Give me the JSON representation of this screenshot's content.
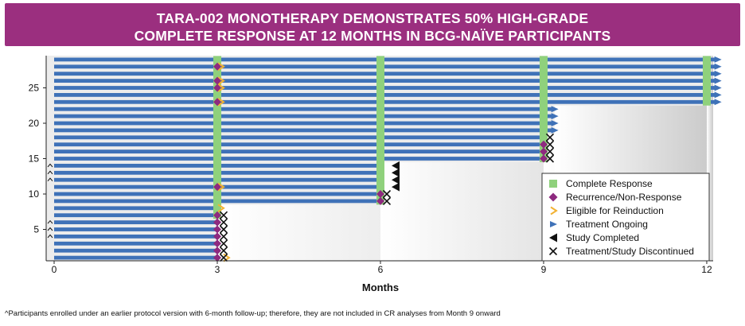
{
  "header": {
    "title_line1": "TARA-002 MONOTHERAPY DEMONSTRATES 50% HIGH-GRADE",
    "title_line2": "COMPLETE RESPONSE AT 12 MONTHS IN BCG-NAÏVE PARTICIPANTS"
  },
  "footnote": "^Participants enrolled under an earlier protocol version with 6-month follow-up; therefore, they are not included in CR analyses from Month 9 onward",
  "colors": {
    "banner": "#9b2f7f",
    "bar": "#3f72b8",
    "complete_response": "#8fd17c",
    "recurrence": "#8e2a7f",
    "reinduction": "#f2b233",
    "ongoing": "#3f72b8",
    "completed": "#111111",
    "discontinued": "#111111"
  },
  "chart_data": {
    "type": "swimmer",
    "title": "TARA-002 MONOTHERAPY DEMONSTRATES 50% HIGH-GRADE COMPLETE RESPONSE AT 12 MONTHS IN BCG-NAÏVE PARTICIPANTS",
    "xlabel": "Months",
    "ylabel": "",
    "xlim": [
      0,
      12.15
    ],
    "ylim": [
      0,
      30
    ],
    "xticks": [
      0,
      3,
      6,
      9,
      12
    ],
    "yticks": [
      5,
      10,
      15,
      20,
      25
    ],
    "grid": false,
    "legend_position": "bottom-right",
    "legend": [
      {
        "marker": "square",
        "label": "Complete Response"
      },
      {
        "marker": "diamond",
        "label": "Recurrence/Non-Response"
      },
      {
        "marker": "chevron",
        "label": "Eligible for Reinduction"
      },
      {
        "marker": "triangle-right",
        "label": "Treatment Ongoing"
      },
      {
        "marker": "triangle-left",
        "label": "Study Completed"
      },
      {
        "marker": "x",
        "label": "Treatment/Study Discontinued"
      }
    ],
    "participants": [
      {
        "id": 1,
        "end": 3,
        "cr": [],
        "recurrence": 3,
        "reinduction": 3.1,
        "event": "discontinued",
        "caret": false
      },
      {
        "id": 2,
        "end": 3,
        "cr": [],
        "recurrence": 3,
        "reinduction": null,
        "event": "discontinued",
        "caret": false
      },
      {
        "id": 3,
        "end": 3,
        "cr": [],
        "recurrence": 3,
        "reinduction": null,
        "event": "discontinued",
        "caret": false
      },
      {
        "id": 4,
        "end": 3,
        "cr": [],
        "recurrence": 3,
        "reinduction": null,
        "event": "discontinued",
        "caret": true
      },
      {
        "id": 5,
        "end": 3,
        "cr": [],
        "recurrence": 3,
        "reinduction": null,
        "event": "discontinued",
        "caret": true
      },
      {
        "id": 6,
        "end": 3,
        "cr": [],
        "recurrence": 3,
        "reinduction": null,
        "event": "discontinued",
        "caret": true
      },
      {
        "id": 7,
        "end": 3,
        "cr": [
          3
        ],
        "recurrence": 3,
        "reinduction": null,
        "event": "discontinued",
        "caret": false
      },
      {
        "id": 8,
        "end": 3,
        "cr": [
          3
        ],
        "recurrence": null,
        "reinduction": 3,
        "event": null,
        "caret": false
      },
      {
        "id": 9,
        "end": 6,
        "cr": [
          3,
          6
        ],
        "recurrence": 6,
        "reinduction": null,
        "event": "discontinued",
        "caret": false
      },
      {
        "id": 10,
        "end": 6,
        "cr": [
          3,
          6
        ],
        "recurrence": 6,
        "reinduction": null,
        "event": "discontinued",
        "caret": false
      },
      {
        "id": 11,
        "end": 6,
        "cr": [
          3,
          6
        ],
        "recurrence": 3,
        "reinduction": 3,
        "event": "completed",
        "caret": false
      },
      {
        "id": 12,
        "end": 6,
        "cr": [
          3,
          6
        ],
        "recurrence": null,
        "reinduction": null,
        "event": "completed",
        "caret": true
      },
      {
        "id": 13,
        "end": 6,
        "cr": [
          3,
          6
        ],
        "recurrence": null,
        "reinduction": null,
        "event": "completed",
        "caret": true
      },
      {
        "id": 14,
        "end": 6,
        "cr": [
          3,
          6
        ],
        "recurrence": null,
        "reinduction": null,
        "event": "completed",
        "caret": true
      },
      {
        "id": 15,
        "end": 9,
        "cr": [
          3,
          6,
          9
        ],
        "recurrence": 9,
        "reinduction": null,
        "event": "discontinued",
        "caret": false
      },
      {
        "id": 16,
        "end": 9,
        "cr": [
          3,
          6,
          9
        ],
        "recurrence": 9,
        "reinduction": null,
        "event": "discontinued",
        "caret": false
      },
      {
        "id": 17,
        "end": 9,
        "cr": [
          3,
          6,
          9
        ],
        "recurrence": 9,
        "reinduction": null,
        "event": "discontinued",
        "caret": false
      },
      {
        "id": 18,
        "end": 9,
        "cr": [
          3,
          6,
          9
        ],
        "recurrence": null,
        "reinduction": null,
        "event": "discontinued",
        "caret": false
      },
      {
        "id": 19,
        "end": 9.2,
        "cr": [
          3,
          6,
          9
        ],
        "recurrence": null,
        "reinduction": null,
        "event": "ongoing",
        "caret": false
      },
      {
        "id": 20,
        "end": 9.2,
        "cr": [
          3,
          6,
          9
        ],
        "recurrence": null,
        "reinduction": null,
        "event": "ongoing",
        "caret": false
      },
      {
        "id": 21,
        "end": 9.2,
        "cr": [
          3,
          6,
          9
        ],
        "recurrence": null,
        "reinduction": null,
        "event": "ongoing",
        "caret": false
      },
      {
        "id": 22,
        "end": 9.2,
        "cr": [
          3,
          6,
          9
        ],
        "recurrence": null,
        "reinduction": null,
        "event": "ongoing",
        "caret": false
      },
      {
        "id": 23,
        "end": 12.2,
        "cr": [
          3,
          6,
          9,
          12
        ],
        "recurrence": 3,
        "reinduction": 3,
        "event": "ongoing",
        "caret": false
      },
      {
        "id": 24,
        "end": 12.2,
        "cr": [
          3,
          6,
          9,
          12
        ],
        "recurrence": null,
        "reinduction": null,
        "event": "ongoing",
        "caret": false
      },
      {
        "id": 25,
        "end": 12.2,
        "cr": [
          3,
          6,
          9,
          12
        ],
        "recurrence": 3,
        "reinduction": 3,
        "event": "ongoing",
        "caret": false
      },
      {
        "id": 26,
        "end": 12.2,
        "cr": [
          3,
          6,
          9,
          12
        ],
        "recurrence": 3,
        "reinduction": 3,
        "event": "ongoing",
        "caret": false
      },
      {
        "id": 27,
        "end": 12.2,
        "cr": [
          3,
          6,
          9,
          12
        ],
        "recurrence": null,
        "reinduction": null,
        "event": "ongoing",
        "caret": false
      },
      {
        "id": 28,
        "end": 12.2,
        "cr": [
          3,
          6,
          9,
          12
        ],
        "recurrence": 3,
        "reinduction": 3,
        "event": "ongoing",
        "caret": false
      },
      {
        "id": 29,
        "end": 12.2,
        "cr": [
          3,
          6,
          9,
          12
        ],
        "recurrence": null,
        "reinduction": null,
        "event": "ongoing",
        "caret": false
      }
    ]
  }
}
